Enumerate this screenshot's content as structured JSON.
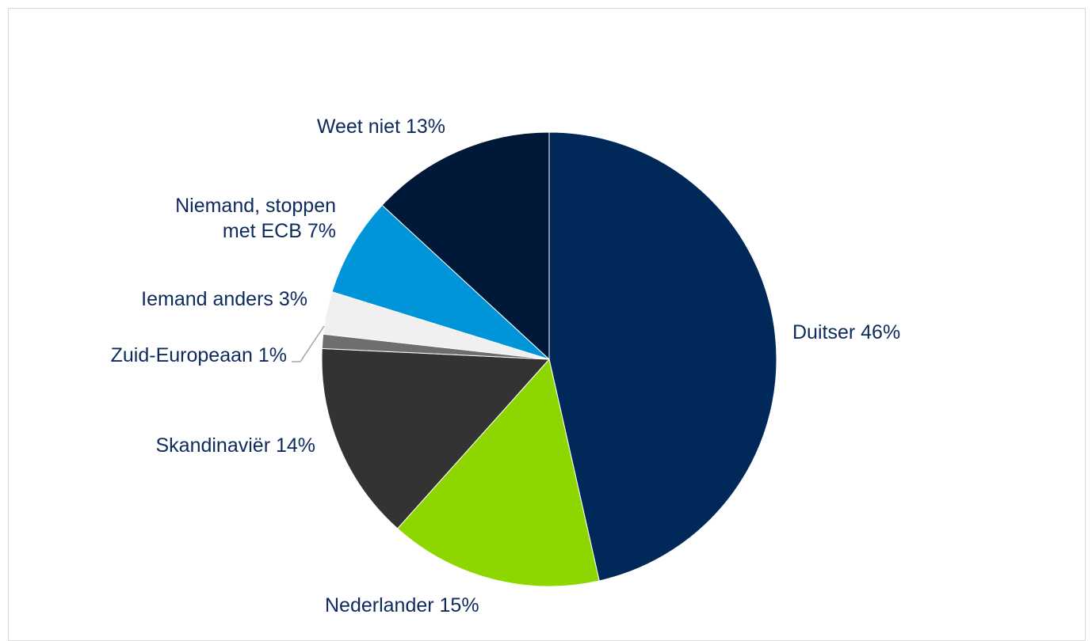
{
  "chart_data": {
    "type": "pie",
    "slices": [
      {
        "name": "Duitser",
        "label": "Duitser 46%",
        "value": 46,
        "color": "#002859"
      },
      {
        "name": "Nederlander",
        "label": "Nederlander 15%",
        "value": 15,
        "color": "#8ed600"
      },
      {
        "name": "Skandinaviër",
        "label": "Skandinaviër 14%",
        "value": 14,
        "color": "#333333"
      },
      {
        "name": "Zuid-Europeaan",
        "label": "Zuid-Europeaan 1%",
        "value": 1,
        "color": "#6e6e6e"
      },
      {
        "name": "Iemand anders",
        "label": "Iemand anders 3%",
        "value": 3,
        "color": "#f0f0f0"
      },
      {
        "name": "Niemand, stoppen met ECB",
        "label": "Niemand, stoppen met ECB 7%",
        "label_lines": [
          "Niemand, stoppen",
          "met ECB 7%"
        ],
        "value": 7,
        "color": "#0095d9"
      },
      {
        "name": "Weet niet",
        "label": "Weet niet 13%",
        "value": 13,
        "color": "#001938"
      }
    ],
    "start_angle": "12 o'clock",
    "direction": "clockwise",
    "legend": "none (data labels)"
  }
}
